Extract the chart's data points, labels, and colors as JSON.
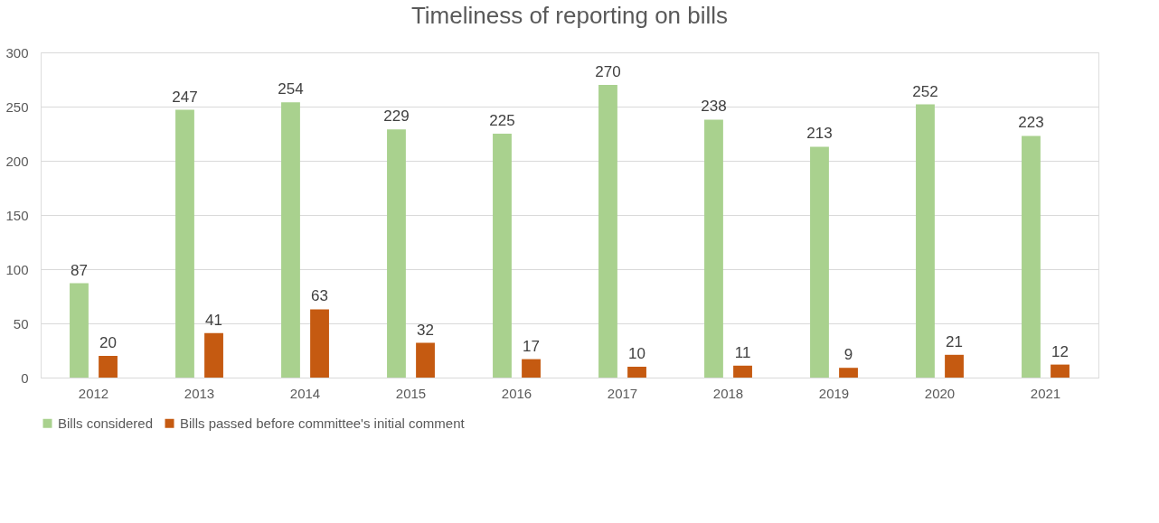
{
  "chart_data": {
    "type": "bar",
    "title": "Timeliness of reporting on bills",
    "categories": [
      "2012",
      "2013",
      "2014",
      "2015",
      "2016",
      "2017",
      "2018",
      "2019",
      "2020",
      "2021"
    ],
    "series": [
      {
        "name": "Bills considered",
        "color": "#a9d18e",
        "values": [
          87,
          247,
          254,
          229,
          225,
          270,
          238,
          213,
          252,
          223
        ]
      },
      {
        "name": "Bills passed before committee's initial comment",
        "color": "#c55a11",
        "values": [
          20,
          41,
          63,
          32,
          17,
          10,
          11,
          9,
          21,
          12
        ]
      }
    ],
    "ylim": [
      0,
      300
    ],
    "yticks": [
      0,
      50,
      100,
      150,
      200,
      250,
      300
    ],
    "grid": "y",
    "legend": "bottom",
    "data_labels": true
  }
}
